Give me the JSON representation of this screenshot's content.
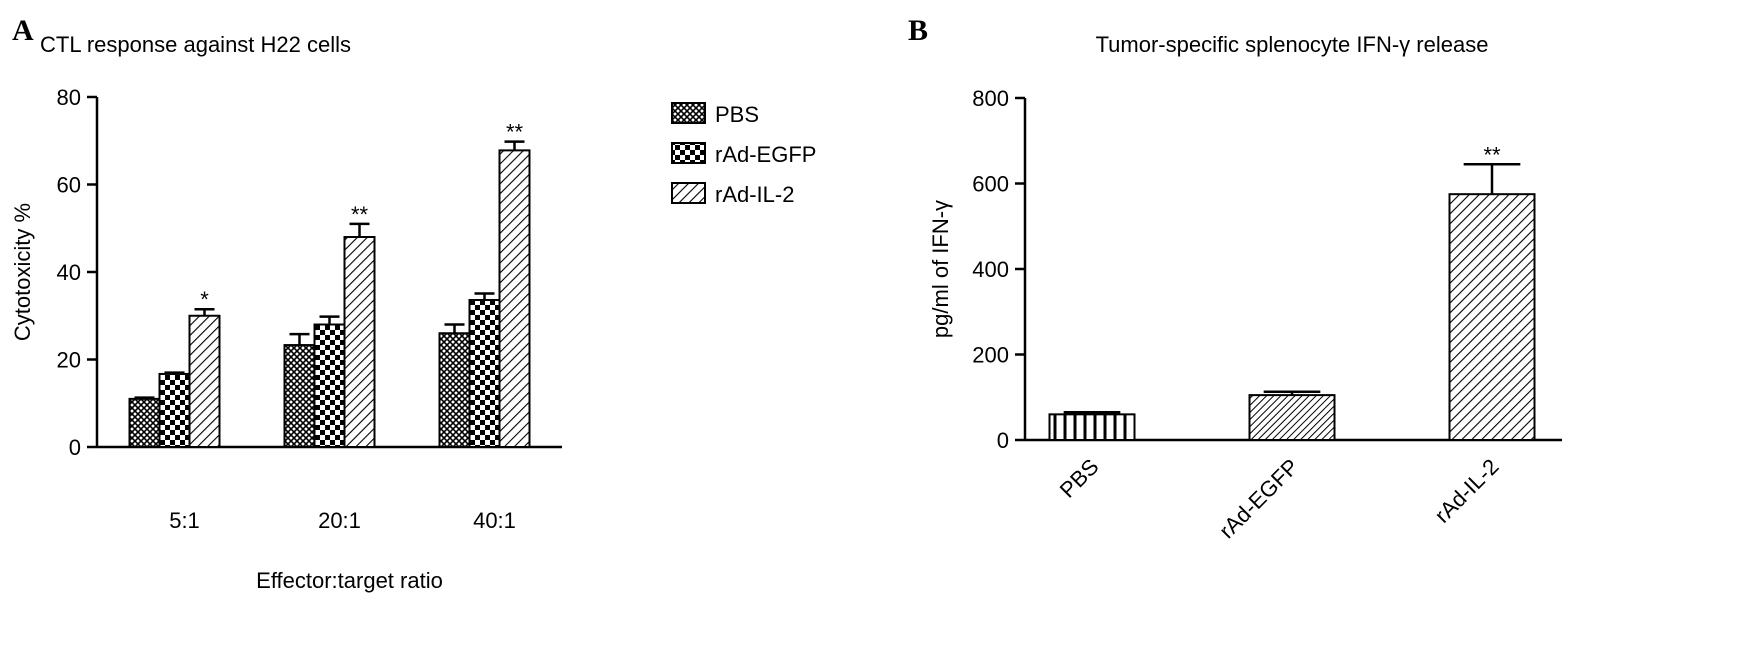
{
  "chart_data": [
    {
      "type": "grouped-bar",
      "panel": "A",
      "title": "CTL response against H22 cells",
      "x_label": "Effector:target ratio",
      "y_label": "Cytotoxicity %",
      "categories": [
        "5:1",
        "20:1",
        "40:1"
      ],
      "series": [
        {
          "name": "PBS",
          "color": "#000000",
          "pattern": "crosshatch",
          "values": [
            11,
            23.3,
            26
          ],
          "errors": [
            0.3,
            2.5,
            2
          ]
        },
        {
          "name": "rAd-EGFP",
          "color": "#000000",
          "pattern": "checker",
          "values": [
            16.7,
            28,
            33.6
          ],
          "errors": [
            0.3,
            1.8,
            1.5
          ]
        },
        {
          "name": "rAd-IL-2",
          "color": "#000000",
          "pattern": "diagonal",
          "values": [
            30,
            48,
            67.8
          ],
          "errors": [
            1.5,
            3,
            2
          ],
          "annotations": [
            "*",
            "**",
            "**"
          ]
        }
      ],
      "ylim": [
        0,
        80
      ],
      "yticks": [
        0,
        20,
        40,
        60,
        80
      ],
      "legend": "right"
    },
    {
      "type": "bar",
      "panel": "B",
      "title": "Tumor-specific splenocyte IFN-γ release",
      "y_label": "pg/ml of IFN-γ",
      "categories": [
        "PBS",
        "rAd-EGFP",
        "rAd-IL-2"
      ],
      "values": [
        60,
        105,
        575
      ],
      "errors": [
        5,
        8,
        70
      ],
      "patterns": [
        "vertical",
        "fine-diagonal",
        "diagonal"
      ],
      "annotations": [
        null,
        null,
        "**"
      ],
      "color": "#000000",
      "ylim": [
        0,
        800
      ],
      "yticks": [
        0,
        200,
        400,
        600,
        800
      ]
    }
  ]
}
